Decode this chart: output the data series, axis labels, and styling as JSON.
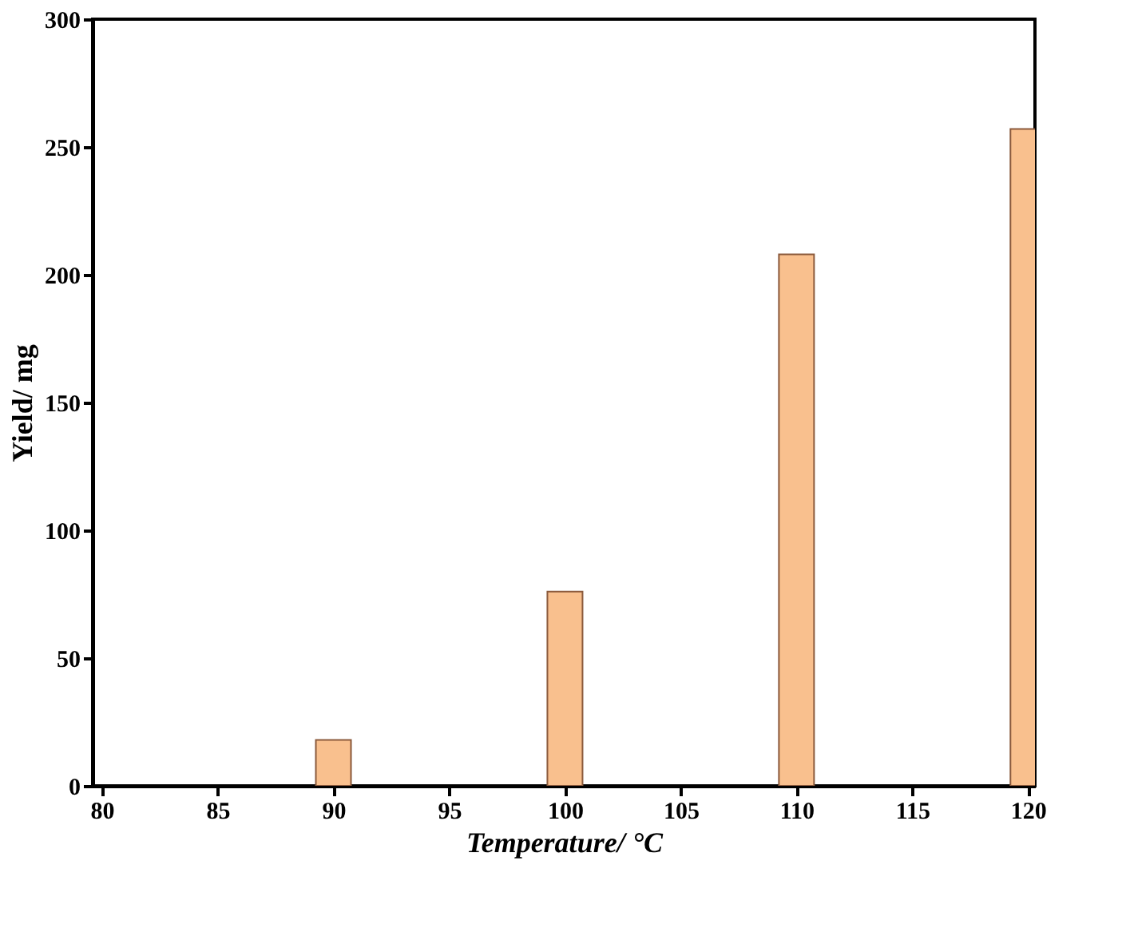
{
  "chart_data": {
    "type": "bar",
    "xlabel": "Temperature/ °C",
    "ylabel": "Yield/ mg",
    "x": [
      90,
      100,
      110,
      120
    ],
    "series": [
      {
        "color": "#f9c08e",
        "values": [
          18,
          76,
          208,
          257
        ]
      }
    ],
    "xlim": [
      79.6,
      120.3
    ],
    "xticks": [
      80,
      85,
      90,
      95,
      100,
      105,
      110,
      115,
      120
    ],
    "ylim": [
      0,
      300
    ],
    "yticks": [
      0,
      50,
      100,
      150,
      200,
      250,
      300
    ],
    "grid": false
  }
}
